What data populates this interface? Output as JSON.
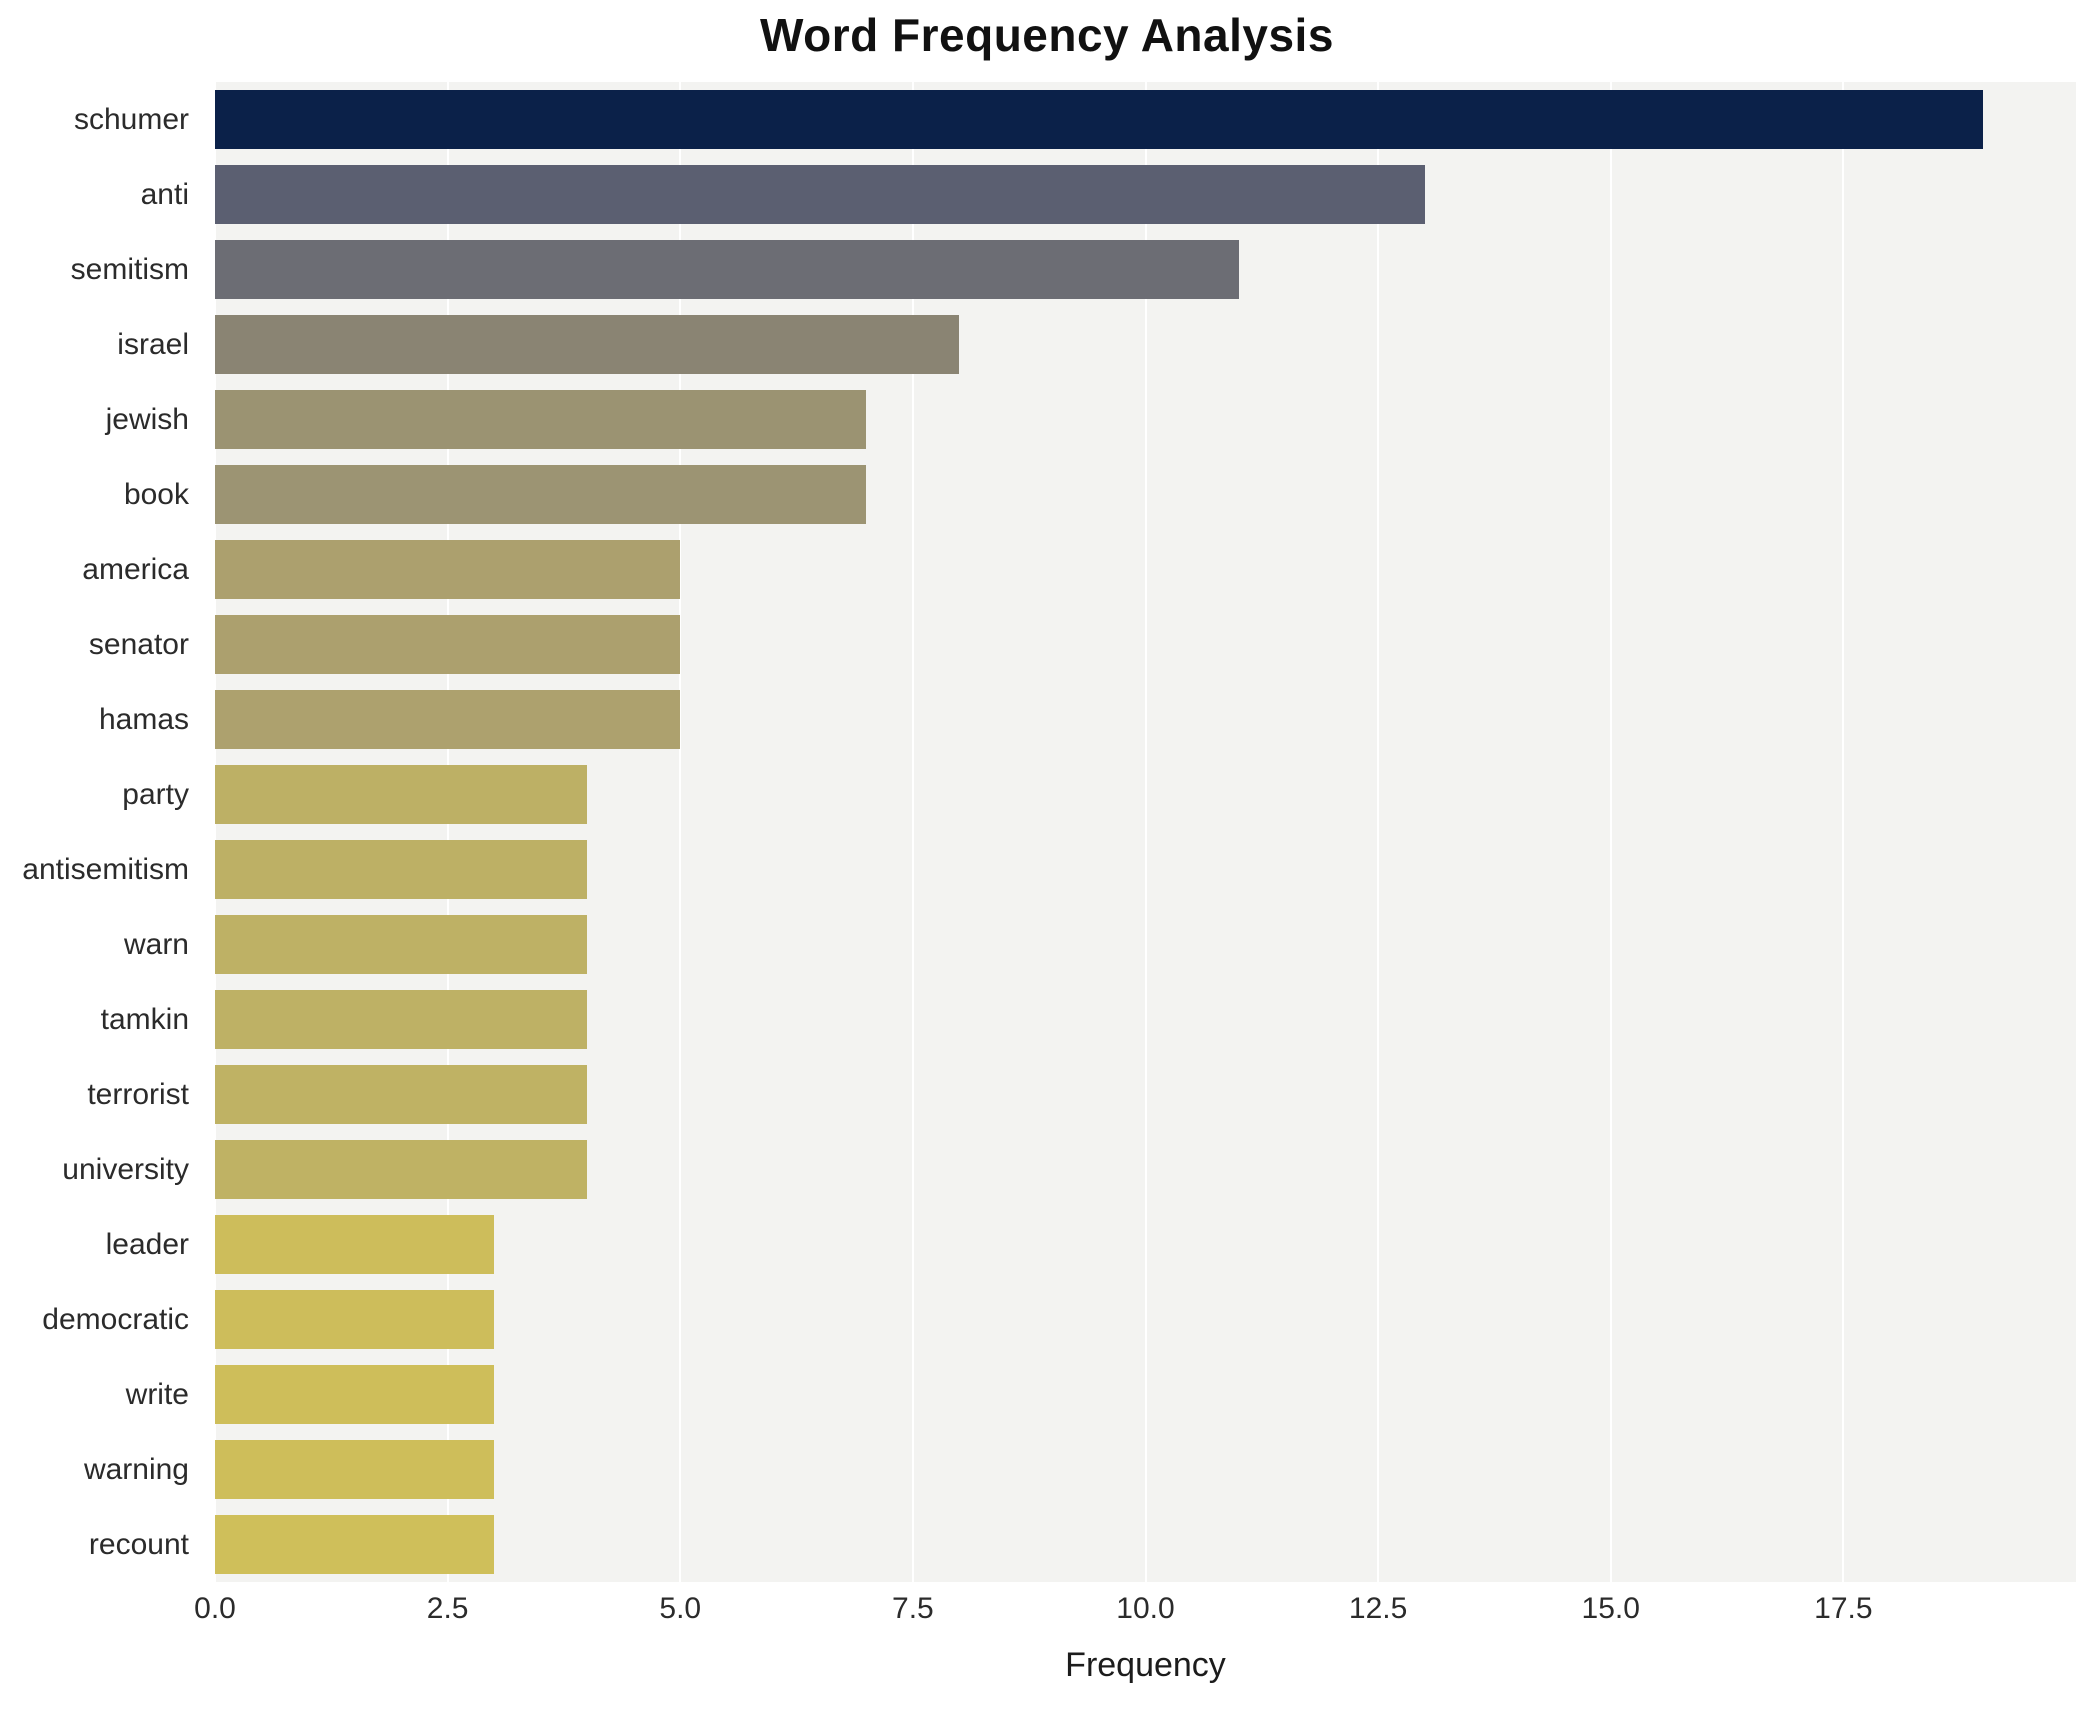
{
  "chart_data": {
    "type": "bar",
    "orientation": "horizontal",
    "title": "Word Frequency Analysis",
    "xlabel": "Frequency",
    "ylabel": "",
    "xlim": [
      0,
      20
    ],
    "xticks": [
      0,
      2.5,
      5,
      7.5,
      10,
      12.5,
      15,
      17.5
    ],
    "grid": true,
    "legend": "none",
    "plot_background": "#f3f3f1",
    "grid_color": "#ffffff",
    "categories": [
      "schumer",
      "anti",
      "semitism",
      "israel",
      "jewish",
      "book",
      "america",
      "senator",
      "hamas",
      "party",
      "antisemitism",
      "warn",
      "tamkin",
      "terrorist",
      "university",
      "leader",
      "democratic",
      "write",
      "warning",
      "recount"
    ],
    "values": [
      19,
      13,
      11,
      8,
      7,
      7,
      5,
      5,
      5,
      4,
      4,
      4,
      4,
      4,
      4,
      3,
      3,
      3,
      3,
      3
    ],
    "bar_colors": [
      "#0b2149",
      "#5b5f71",
      "#6c6d74",
      "#8a8473",
      "#9b9372",
      "#9c9473",
      "#aca06e",
      "#aca06e",
      "#ada16e",
      "#bdb065",
      "#bdb065",
      "#beb165",
      "#beb165",
      "#bfb264",
      "#bfb264",
      "#cdbd5b",
      "#cdbd5b",
      "#cebe5a",
      "#cebe5a",
      "#cfbf5a"
    ]
  }
}
